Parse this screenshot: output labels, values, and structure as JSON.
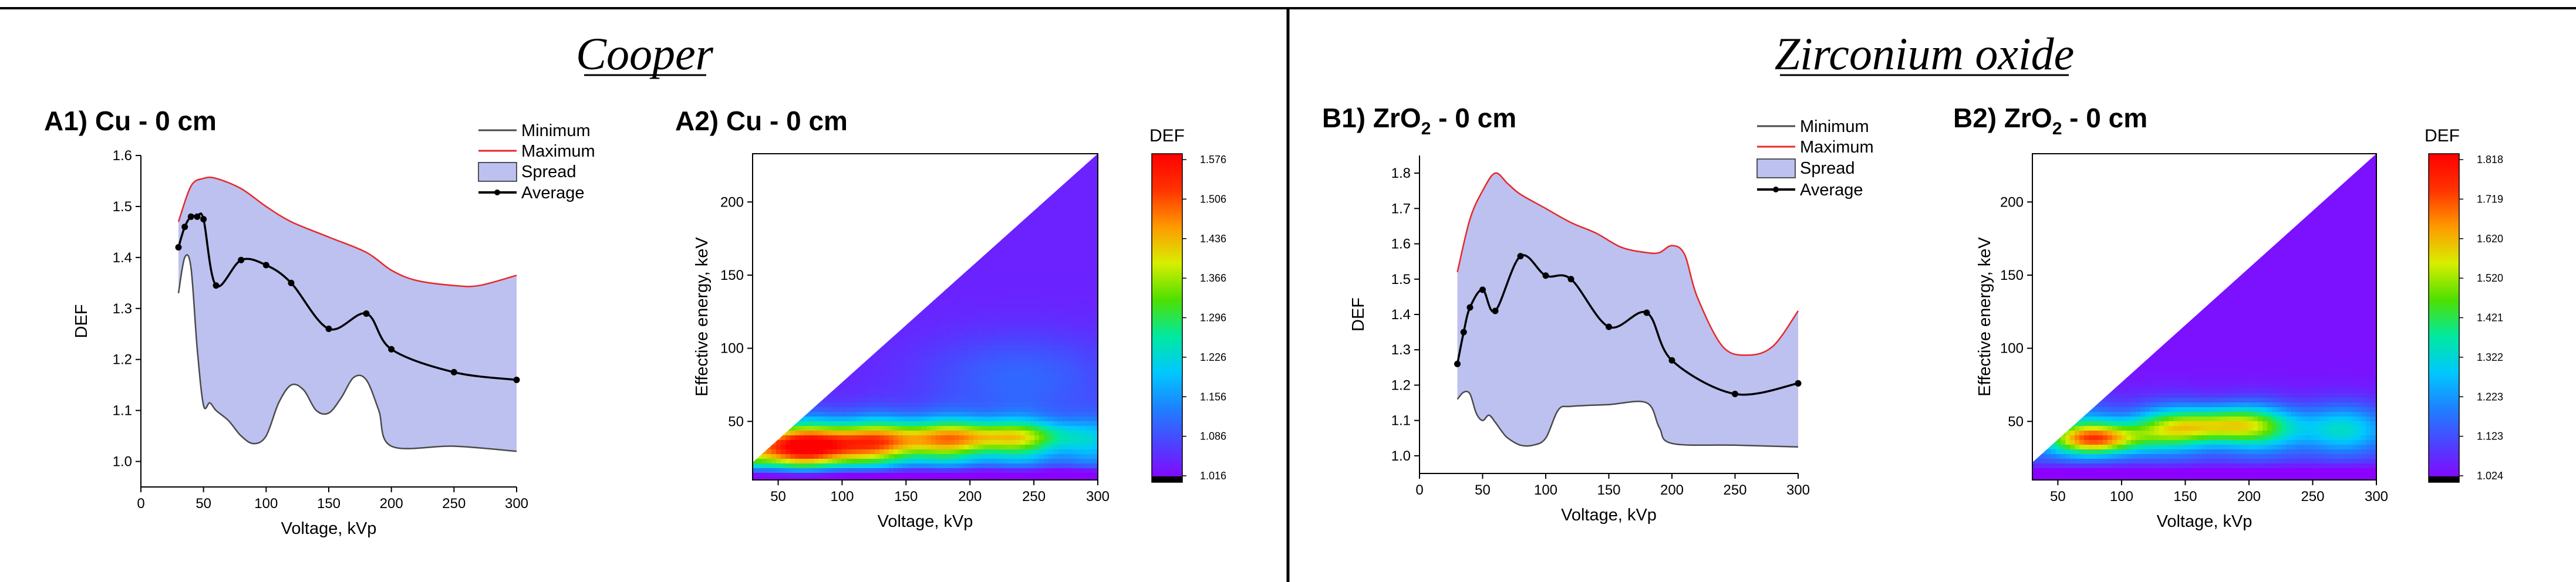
{
  "sections": [
    {
      "title": "Cooper"
    },
    {
      "title": "Zirconium oxide"
    }
  ],
  "colors": {
    "spread": "#bcc1ef",
    "maximum": "#e8272a",
    "minimum": "#4a4a4a",
    "average": "#000000",
    "colormap": [
      "#8b00ff",
      "#4f3fff",
      "#1f7fff",
      "#00c8ff",
      "#00e9a0",
      "#4fe000",
      "#d8ee00",
      "#ff9900",
      "#ff3300",
      "#ff0000"
    ]
  },
  "chart_data": [
    {
      "id": "A1",
      "type": "line",
      "title": "A1) Cu - 0 cm",
      "xlabel": "Voltage, kVp",
      "ylabel": "DEF",
      "xlim": [
        0,
        300
      ],
      "ylim": [
        0.95,
        1.6
      ],
      "xticks": [
        0,
        50,
        100,
        150,
        200,
        250,
        300
      ],
      "yticks": [
        1.0,
        1.1,
        1.2,
        1.3,
        1.4,
        1.5,
        1.6
      ],
      "legend": [
        "Minimum",
        "Maximum",
        "Spread",
        "Average"
      ],
      "legend_position": "top-right",
      "series": [
        {
          "name": "Average",
          "x": [
            30,
            35,
            40,
            45,
            50,
            60,
            80,
            100,
            120,
            150,
            180,
            200,
            250,
            300
          ],
          "y": [
            1.42,
            1.46,
            1.48,
            1.48,
            1.475,
            1.345,
            1.395,
            1.385,
            1.35,
            1.26,
            1.29,
            1.22,
            1.175,
            1.16
          ]
        },
        {
          "name": "Maximum",
          "x": [
            30,
            40,
            50,
            60,
            80,
            100,
            120,
            150,
            180,
            200,
            220,
            250,
            270,
            300
          ],
          "y": [
            1.47,
            1.54,
            1.555,
            1.555,
            1.535,
            1.5,
            1.47,
            1.44,
            1.41,
            1.375,
            1.355,
            1.345,
            1.345,
            1.365
          ]
        },
        {
          "name": "Minimum",
          "x": [
            30,
            35,
            40,
            45,
            50,
            55,
            60,
            70,
            80,
            90,
            100,
            110,
            120,
            130,
            140,
            150,
            160,
            170,
            180,
            190,
            200,
            250,
            300
          ],
          "y": [
            1.33,
            1.4,
            1.38,
            1.22,
            1.11,
            1.115,
            1.1,
            1.08,
            1.05,
            1.035,
            1.05,
            1.115,
            1.15,
            1.14,
            1.1,
            1.095,
            1.125,
            1.165,
            1.16,
            1.1,
            1.03,
            1.03,
            1.02
          ]
        }
      ]
    },
    {
      "id": "A2",
      "type": "heatmap",
      "title": "A2) Cu - 0 cm",
      "xlabel": "Voltage, kVp",
      "ylabel": "Effective energy, keV",
      "xlim": [
        30,
        300
      ],
      "ylim": [
        10,
        233
      ],
      "xticks": [
        50,
        100,
        150,
        200,
        250,
        300
      ],
      "yticks": [
        50,
        100,
        150,
        200
      ],
      "colorbar_title": "DEF",
      "colorbar_ticks": [
        "1.576",
        "1.506",
        "1.436",
        "1.366",
        "1.296",
        "1.226",
        "1.156",
        "1.086",
        "1.016"
      ],
      "zlim": [
        1.016,
        1.6
      ]
    },
    {
      "id": "B1",
      "type": "line",
      "title": "B1) ZrO",
      "title_subscript": "2",
      "title_suffix": " - 0 cm",
      "xlabel": "Voltage, kVp",
      "ylabel": "DEF",
      "xlim": [
        0,
        300
      ],
      "ylim": [
        0.95,
        1.85
      ],
      "xticks": [
        0,
        50,
        100,
        150,
        200,
        250,
        300
      ],
      "yticks": [
        1.0,
        1.1,
        1.2,
        1.3,
        1.4,
        1.5,
        1.6,
        1.7,
        1.8
      ],
      "legend": [
        "Minimum",
        "Maximum",
        "Spread",
        "Average"
      ],
      "legend_position": "top-right",
      "series": [
        {
          "name": "Average",
          "x": [
            30,
            35,
            40,
            50,
            60,
            80,
            100,
            120,
            150,
            180,
            200,
            250,
            300
          ],
          "y": [
            1.26,
            1.35,
            1.42,
            1.47,
            1.41,
            1.565,
            1.51,
            1.5,
            1.365,
            1.405,
            1.27,
            1.175,
            1.205
          ]
        },
        {
          "name": "Maximum",
          "x": [
            30,
            40,
            50,
            60,
            70,
            80,
            100,
            120,
            140,
            160,
            180,
            190,
            200,
            210,
            220,
            240,
            260,
            280,
            300
          ],
          "y": [
            1.52,
            1.67,
            1.75,
            1.8,
            1.77,
            1.74,
            1.7,
            1.66,
            1.63,
            1.59,
            1.575,
            1.575,
            1.595,
            1.57,
            1.45,
            1.31,
            1.285,
            1.31,
            1.41
          ]
        },
        {
          "name": "Minimum",
          "x": [
            30,
            35,
            40,
            45,
            50,
            55,
            60,
            65,
            70,
            80,
            90,
            100,
            110,
            120,
            150,
            180,
            190,
            200,
            250,
            300
          ],
          "y": [
            1.16,
            1.18,
            1.175,
            1.12,
            1.1,
            1.115,
            1.095,
            1.07,
            1.05,
            1.03,
            1.03,
            1.05,
            1.13,
            1.14,
            1.145,
            1.15,
            1.08,
            1.035,
            1.03,
            1.025
          ]
        }
      ]
    },
    {
      "id": "B2",
      "type": "heatmap",
      "title": "B2) ZrO",
      "title_subscript": "2",
      "title_suffix": " - 0 cm",
      "xlabel": "Voltage, kVp",
      "ylabel": "Effective energy, keV",
      "xlim": [
        30,
        300
      ],
      "ylim": [
        10,
        233
      ],
      "xticks": [
        50,
        100,
        150,
        200,
        250,
        300
      ],
      "yticks": [
        50,
        100,
        150,
        200
      ],
      "colorbar_title": "DEF",
      "colorbar_ticks": [
        "1.818",
        "1.719",
        "1.620",
        "1.520",
        "1.421",
        "1.322",
        "1.223",
        "1.123",
        "1.024"
      ],
      "zlim": [
        1.024,
        1.85
      ]
    }
  ]
}
